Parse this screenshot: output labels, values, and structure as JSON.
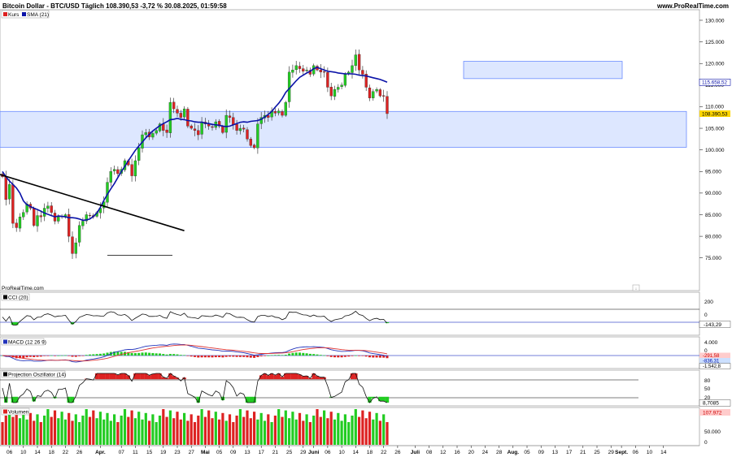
{
  "header": {
    "title": "Bitcoin Dollar - BTC/USD Täglich 108.390,53 -3,72 % 30.08.2025, 01:59:58",
    "source": "www.ProRealTime.com"
  },
  "watermark": "ProRealTime.com",
  "colors": {
    "up": "#22cc22",
    "down": "#dd2222",
    "sma": "#0a12a8",
    "zone_fill": "#dde7ff",
    "zone_stroke": "#6b8cff",
    "trend": "#000000"
  },
  "chart_data": [
    {
      "type": "candlestick",
      "legend": [
        {
          "label": "Kurs",
          "color": "#dd2222"
        },
        {
          "label": "SMA (21)",
          "color": "#0a12a8"
        }
      ],
      "yticks": [
        "130.000",
        "125.000",
        "120.000",
        "115.000",
        "110.000",
        "105.000",
        "100.000",
        "95.000",
        "90.000",
        "85.000",
        "80.000",
        "75.000"
      ],
      "ylim": [
        71000,
        131500
      ],
      "last_price": "108.390,53",
      "sma_value": "115.658,52",
      "zones": [
        {
          "y_low": 100600,
          "y_high": 108900
        },
        {
          "y_low": 116500,
          "y_high": 120500
        }
      ],
      "support_level": 75600,
      "close": [
        93800,
        88500,
        92000,
        83000,
        82000,
        84500,
        85500,
        87500,
        86500,
        82500,
        84800,
        84500,
        86500,
        87000,
        85500,
        83500,
        84500,
        84500,
        85000,
        80000,
        76000,
        78500,
        82500,
        83500,
        85000,
        84800,
        84500,
        85500,
        86500,
        88000,
        92500,
        95000,
        95500,
        94500,
        95500,
        97500,
        96500,
        94000,
        97500,
        100500,
        103500,
        104000,
        103000,
        103800,
        104500,
        106000,
        104500,
        104000,
        111000,
        109500,
        108500,
        107500,
        109500,
        105500,
        105000,
        104500,
        103500,
        106500,
        106000,
        105500,
        105200,
        106500,
        105500,
        104000,
        108000,
        107500,
        105800,
        104500,
        105000,
        104800,
        102500,
        101000,
        100500,
        106000,
        107500,
        108000,
        107500,
        109000,
        108500,
        109000,
        108000,
        111000,
        118000,
        118500,
        119500,
        118800,
        118200,
        118500,
        117500,
        119500,
        118500,
        118000,
        118000,
        114500,
        112500,
        114000,
        114500,
        115000,
        117500,
        118000,
        119500,
        122000,
        118500,
        117500,
        114500,
        112000,
        113500,
        114000,
        112500,
        112500,
        108390
      ],
      "sma": [
        95000,
        93800,
        92800,
        92000,
        91200,
        90000,
        88200,
        87300,
        86900,
        86500,
        86200,
        85800,
        85400,
        85100,
        84800,
        84500,
        84700,
        84600,
        84500,
        84300,
        84300,
        84200,
        84000,
        83700,
        83800,
        84000,
        84600,
        85400,
        86700,
        88300,
        89700,
        91000,
        92200,
        93600,
        95000,
        96200,
        97500,
        98700,
        99900,
        100900,
        101800,
        102800,
        103600,
        104400,
        105000,
        105600,
        106100,
        106500,
        107000,
        107100,
        107300,
        107100,
        107000,
        106800,
        106700,
        106500,
        106400,
        106400,
        106200,
        106100,
        105900,
        105800,
        105700,
        105500,
        105400,
        105500,
        105800,
        106100,
        106400,
        106500,
        106400,
        106600,
        106700,
        106800,
        107100,
        107600,
        108200,
        108900,
        109900,
        110800,
        111900,
        113300,
        114200,
        115100,
        116000,
        116800,
        117300,
        117800,
        118200,
        118800,
        119100,
        118800,
        118500,
        118200,
        118100,
        118000,
        117800,
        117700,
        117600,
        117600,
        117600,
        117500,
        117300,
        117200,
        117100,
        116900,
        116700,
        116500,
        116300,
        116000,
        115659
      ],
      "x_labels": [
        {
          "i": 2,
          "label": "06"
        },
        {
          "i": 6,
          "label": "10"
        },
        {
          "i": 10,
          "label": "14"
        },
        {
          "i": 14,
          "label": "18"
        },
        {
          "i": 18,
          "label": "22"
        },
        {
          "i": 22,
          "label": "26"
        },
        {
          "i": 28,
          "label": "Apr."
        },
        {
          "i": 34,
          "label": "07"
        },
        {
          "i": 38,
          "label": "11"
        },
        {
          "i": 42,
          "label": "15"
        },
        {
          "i": 46,
          "label": "19"
        },
        {
          "i": 50,
          "label": "23"
        },
        {
          "i": 54,
          "label": "27"
        },
        {
          "i": 58,
          "label": "Mai"
        },
        {
          "i": 62,
          "label": "05"
        },
        {
          "i": 66,
          "label": "09"
        },
        {
          "i": 70,
          "label": "13"
        },
        {
          "i": 74,
          "label": "17"
        },
        {
          "i": 78,
          "label": "21"
        },
        {
          "i": 82,
          "label": "25"
        },
        {
          "i": 86,
          "label": "29"
        },
        {
          "i": 89,
          "label": "Juni"
        },
        {
          "i": 93,
          "label": "06"
        },
        {
          "i": 97,
          "label": "10"
        },
        {
          "i": 101,
          "label": "14"
        },
        {
          "i": 105,
          "label": "18"
        },
        {
          "i": 109,
          "label": "22"
        },
        {
          "i": 113,
          "label": "26"
        },
        {
          "i": 118,
          "label": "Juli"
        },
        {
          "i": 122,
          "label": "08"
        },
        {
          "i": 126,
          "label": "12"
        },
        {
          "i": 130,
          "label": "16"
        },
        {
          "i": 134,
          "label": "20"
        },
        {
          "i": 138,
          "label": "24"
        },
        {
          "i": 142,
          "label": "28"
        },
        {
          "i": 146,
          "label": "Aug."
        },
        {
          "i": 150,
          "label": "05"
        },
        {
          "i": 154,
          "label": "09"
        },
        {
          "i": 158,
          "label": "13"
        },
        {
          "i": 162,
          "label": "17"
        },
        {
          "i": 166,
          "label": "21"
        },
        {
          "i": 170,
          "label": "25"
        },
        {
          "i": 174,
          "label": "29"
        },
        {
          "i": 177,
          "label": "Sept."
        },
        {
          "i": 181,
          "label": "06"
        },
        {
          "i": 185,
          "label": "10"
        },
        {
          "i": 189,
          "label": "14"
        }
      ]
    },
    {
      "type": "area",
      "title": "CCI (20)",
      "yticks": [
        "200",
        "0"
      ],
      "last_value": "-143,29"
    },
    {
      "type": "bar",
      "title": "MACD (12 26 9)",
      "yticks": [
        "4.000",
        "0"
      ],
      "last_values": [
        "-291,58",
        "-836,31",
        "-1.542,8"
      ]
    },
    {
      "type": "area",
      "title": "Projection Oszillator (14)",
      "yticks": [
        "80",
        "50",
        "20"
      ],
      "last_value": "8,7085"
    },
    {
      "type": "bar",
      "title": "Volumen",
      "yticks": [
        "50.000",
        "0"
      ],
      "last_value": "107.972"
    }
  ]
}
